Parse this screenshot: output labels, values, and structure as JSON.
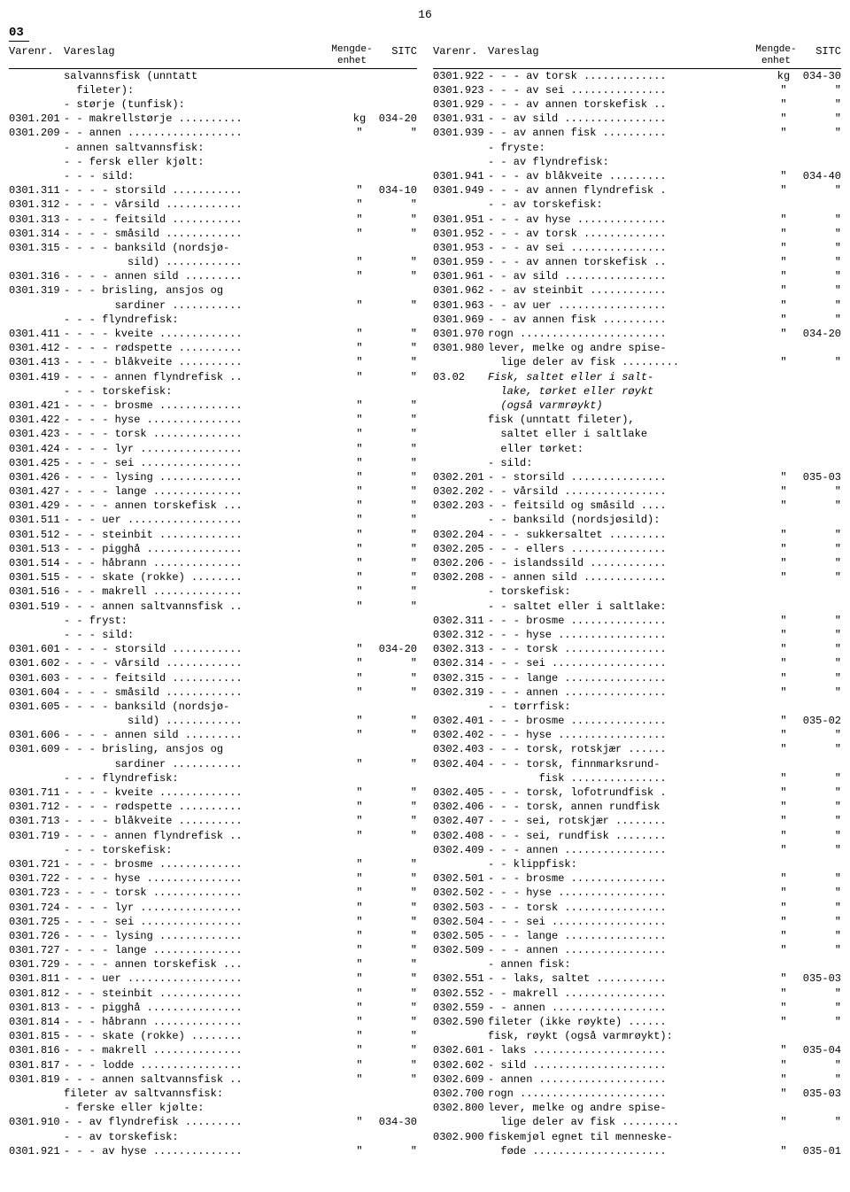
{
  "page_number": "16",
  "chapter": "03",
  "headers": {
    "varenr": "Varenr.",
    "vareslag": "Vareslag",
    "mengde1": "Mengde-",
    "mengde2": "enhet",
    "sitc": "SITC"
  },
  "left": [
    {
      "v": "",
      "d": "salvannsfisk (unntatt",
      "m": "",
      "s": ""
    },
    {
      "v": "",
      "d": "  fileter):",
      "m": "",
      "s": ""
    },
    {
      "v": "",
      "d": "- størje (tunfisk):",
      "m": "",
      "s": ""
    },
    {
      "v": "0301.201",
      "d": "- - makrellstørje ..........",
      "m": "kg",
      "s": "034-20"
    },
    {
      "v": "0301.209",
      "d": "- - annen ..................",
      "m": "\"",
      "s": "\""
    },
    {
      "v": "",
      "d": "- annen saltvannsfisk:",
      "m": "",
      "s": ""
    },
    {
      "v": "",
      "d": "- - fersk eller kjølt:",
      "m": "",
      "s": ""
    },
    {
      "v": "",
      "d": "- - - sild:",
      "m": "",
      "s": ""
    },
    {
      "v": "0301.311",
      "d": "- - - - storsild ...........",
      "m": "\"",
      "s": "034-10"
    },
    {
      "v": "0301.312",
      "d": "- - - - vårsild ............",
      "m": "\"",
      "s": "\""
    },
    {
      "v": "0301.313",
      "d": "- - - - feitsild ...........",
      "m": "\"",
      "s": "\""
    },
    {
      "v": "0301.314",
      "d": "- - - - småsild ............",
      "m": "\"",
      "s": "\""
    },
    {
      "v": "0301.315",
      "d": "- - - - banksild (nordsjø-",
      "m": "",
      "s": ""
    },
    {
      "v": "",
      "d": "          sild) ............",
      "m": "\"",
      "s": "\""
    },
    {
      "v": "0301.316",
      "d": "- - - - annen sild .........",
      "m": "\"",
      "s": "\""
    },
    {
      "v": "0301.319",
      "d": "- - - brisling, ansjos og",
      "m": "",
      "s": ""
    },
    {
      "v": "",
      "d": "        sardiner ...........",
      "m": "\"",
      "s": "\""
    },
    {
      "v": "",
      "d": "- - - flyndrefisk:",
      "m": "",
      "s": ""
    },
    {
      "v": "0301.411",
      "d": "- - - - kveite .............",
      "m": "\"",
      "s": "\""
    },
    {
      "v": "0301.412",
      "d": "- - - - rødspette ..........",
      "m": "\"",
      "s": "\""
    },
    {
      "v": "0301.413",
      "d": "- - - - blåkveite ..........",
      "m": "\"",
      "s": "\""
    },
    {
      "v": "0301.419",
      "d": "- - - - annen flyndrefisk ..",
      "m": "\"",
      "s": "\""
    },
    {
      "v": "",
      "d": "- - - torskefisk:",
      "m": "",
      "s": ""
    },
    {
      "v": "0301.421",
      "d": "- - - - brosme .............",
      "m": "\"",
      "s": "\""
    },
    {
      "v": "0301.422",
      "d": "- - - - hyse ...............",
      "m": "\"",
      "s": "\""
    },
    {
      "v": "0301.423",
      "d": "- - - - torsk ..............",
      "m": "\"",
      "s": "\""
    },
    {
      "v": "0301.424",
      "d": "- - - - lyr ................",
      "m": "\"",
      "s": "\""
    },
    {
      "v": "0301.425",
      "d": "- - - - sei ................",
      "m": "\"",
      "s": "\""
    },
    {
      "v": "0301.426",
      "d": "- - - - lysing .............",
      "m": "\"",
      "s": "\""
    },
    {
      "v": "0301.427",
      "d": "- - - - lange ..............",
      "m": "\"",
      "s": "\""
    },
    {
      "v": "0301.429",
      "d": "- - - - annen torskefisk ...",
      "m": "\"",
      "s": "\""
    },
    {
      "v": "0301.511",
      "d": "- - - uer ..................",
      "m": "\"",
      "s": "\""
    },
    {
      "v": "0301.512",
      "d": "- - - steinbit .............",
      "m": "\"",
      "s": "\""
    },
    {
      "v": "0301.513",
      "d": "- - - pigghå ...............",
      "m": "\"",
      "s": "\""
    },
    {
      "v": "0301.514",
      "d": "- - - håbrann ..............",
      "m": "\"",
      "s": "\""
    },
    {
      "v": "0301.515",
      "d": "- - - skate (rokke) ........",
      "m": "\"",
      "s": "\""
    },
    {
      "v": "0301.516",
      "d": "- - - makrell ..............",
      "m": "\"",
      "s": "\""
    },
    {
      "v": "0301.519",
      "d": "- - - annen saltvannsfisk ..",
      "m": "\"",
      "s": "\""
    },
    {
      "v": "",
      "d": "- - fryst:",
      "m": "",
      "s": ""
    },
    {
      "v": "",
      "d": "- - - sild:",
      "m": "",
      "s": ""
    },
    {
      "v": "0301.601",
      "d": "- - - - storsild ...........",
      "m": "\"",
      "s": "034-20"
    },
    {
      "v": "0301.602",
      "d": "- - - - vårsild ............",
      "m": "\"",
      "s": "\""
    },
    {
      "v": "0301.603",
      "d": "- - - - feitsild ...........",
      "m": "\"",
      "s": "\""
    },
    {
      "v": "0301.604",
      "d": "- - - - småsild ............",
      "m": "\"",
      "s": "\""
    },
    {
      "v": "0301.605",
      "d": "- - - - banksild (nordsjø-",
      "m": "",
      "s": ""
    },
    {
      "v": "",
      "d": "          sild) ............",
      "m": "\"",
      "s": "\""
    },
    {
      "v": "0301.606",
      "d": "- - - - annen sild .........",
      "m": "\"",
      "s": "\""
    },
    {
      "v": "0301.609",
      "d": "- - - brisling, ansjos og",
      "m": "",
      "s": ""
    },
    {
      "v": "",
      "d": "        sardiner ...........",
      "m": "\"",
      "s": "\""
    },
    {
      "v": "",
      "d": "- - - flyndrefisk:",
      "m": "",
      "s": ""
    },
    {
      "v": "0301.711",
      "d": "- - - - kveite .............",
      "m": "\"",
      "s": "\""
    },
    {
      "v": "0301.712",
      "d": "- - - - rødspette ..........",
      "m": "\"",
      "s": "\""
    },
    {
      "v": "0301.713",
      "d": "- - - - blåkveite ..........",
      "m": "\"",
      "s": "\""
    },
    {
      "v": "0301.719",
      "d": "- - - - annen flyndrefisk ..",
      "m": "\"",
      "s": "\""
    },
    {
      "v": "",
      "d": "- - - torskefisk:",
      "m": "",
      "s": ""
    },
    {
      "v": "0301.721",
      "d": "- - - - brosme .............",
      "m": "\"",
      "s": "\""
    },
    {
      "v": "0301.722",
      "d": "- - - - hyse ...............",
      "m": "\"",
      "s": "\""
    },
    {
      "v": "0301.723",
      "d": "- - - - torsk ..............",
      "m": "\"",
      "s": "\""
    },
    {
      "v": "0301.724",
      "d": "- - - - lyr ................",
      "m": "\"",
      "s": "\""
    },
    {
      "v": "0301.725",
      "d": "- - - - sei ................",
      "m": "\"",
      "s": "\""
    },
    {
      "v": "0301.726",
      "d": "- - - - lysing .............",
      "m": "\"",
      "s": "\""
    },
    {
      "v": "0301.727",
      "d": "- - - - lange ..............",
      "m": "\"",
      "s": "\""
    },
    {
      "v": "0301.729",
      "d": "- - - - annen torskefisk ...",
      "m": "\"",
      "s": "\""
    },
    {
      "v": "0301.811",
      "d": "- - - uer ..................",
      "m": "\"",
      "s": "\""
    },
    {
      "v": "0301.812",
      "d": "- - - steinbit .............",
      "m": "\"",
      "s": "\""
    },
    {
      "v": "0301.813",
      "d": "- - - pigghå ...............",
      "m": "\"",
      "s": "\""
    },
    {
      "v": "0301.814",
      "d": "- - - håbrann ..............",
      "m": "\"",
      "s": "\""
    },
    {
      "v": "0301.815",
      "d": "- - - skate (rokke) ........",
      "m": "\"",
      "s": "\""
    },
    {
      "v": "0301.816",
      "d": "- - - makrell ..............",
      "m": "\"",
      "s": "\""
    },
    {
      "v": "0301.817",
      "d": "- - - lodde ................",
      "m": "\"",
      "s": "\""
    },
    {
      "v": "0301.819",
      "d": "- - - annen saltvannsfisk ..",
      "m": "\"",
      "s": "\""
    },
    {
      "v": "",
      "d": "fileter av saltvannsfisk:",
      "m": "",
      "s": ""
    },
    {
      "v": "",
      "d": "- ferske eller kjølte:",
      "m": "",
      "s": ""
    },
    {
      "v": "0301.910",
      "d": "- - av flyndrefisk .........",
      "m": "\"",
      "s": "034-30"
    },
    {
      "v": "",
      "d": "- - av torskefisk:",
      "m": "",
      "s": ""
    },
    {
      "v": "0301.921",
      "d": "- - - av hyse ..............",
      "m": "\"",
      "s": "\""
    }
  ],
  "right": [
    {
      "v": "0301.922",
      "d": "- - - av torsk .............",
      "m": "kg",
      "s": "034-30"
    },
    {
      "v": "0301.923",
      "d": "- - - av sei ...............",
      "m": "\"",
      "s": "\""
    },
    {
      "v": "0301.929",
      "d": "- - - av annen torskefisk ..",
      "m": "\"",
      "s": "\""
    },
    {
      "v": "0301.931",
      "d": "- - av sild ................",
      "m": "\"",
      "s": "\""
    },
    {
      "v": "0301.939",
      "d": "- - av annen fisk ..........",
      "m": "\"",
      "s": "\""
    },
    {
      "v": "",
      "d": "- fryste:",
      "m": "",
      "s": ""
    },
    {
      "v": "",
      "d": "- - av flyndrefisk:",
      "m": "",
      "s": ""
    },
    {
      "v": "0301.941",
      "d": "- - - av blåkveite .........",
      "m": "\"",
      "s": "034-40"
    },
    {
      "v": "0301.949",
      "d": "- - - av annen flyndrefisk .",
      "m": "\"",
      "s": "\""
    },
    {
      "v": "",
      "d": "- - av torskefisk:",
      "m": "",
      "s": ""
    },
    {
      "v": "0301.951",
      "d": "- - - av hyse ..............",
      "m": "\"",
      "s": "\""
    },
    {
      "v": "0301.952",
      "d": "- - - av torsk .............",
      "m": "\"",
      "s": "\""
    },
    {
      "v": "0301.953",
      "d": "- - - av sei ...............",
      "m": "\"",
      "s": "\""
    },
    {
      "v": "0301.959",
      "d": "- - - av annen torskefisk ..",
      "m": "\"",
      "s": "\""
    },
    {
      "v": "0301.961",
      "d": "- - av sild ................",
      "m": "\"",
      "s": "\""
    },
    {
      "v": "0301.962",
      "d": "- - av steinbit ............",
      "m": "\"",
      "s": "\""
    },
    {
      "v": "0301.963",
      "d": "- - av uer .................",
      "m": "\"",
      "s": "\""
    },
    {
      "v": "0301.969",
      "d": "- - av annen fisk ..........",
      "m": "\"",
      "s": "\""
    },
    {
      "v": "0301.970",
      "d": "rogn .......................",
      "m": "\"",
      "s": "034-20"
    },
    {
      "v": "0301.980",
      "d": "lever, melke og andre spise-",
      "m": "",
      "s": ""
    },
    {
      "v": "",
      "d": "  lige deler av fisk .........",
      "m": "\"",
      "s": "\""
    },
    {
      "v": "",
      "d": "",
      "m": "",
      "s": ""
    },
    {
      "v": "03.02",
      "d": "Fisk, saltet eller i salt-",
      "m": "",
      "s": "",
      "italic": true
    },
    {
      "v": "",
      "d": "  lake, tørket eller røykt",
      "m": "",
      "s": "",
      "italic": true
    },
    {
      "v": "",
      "d": "  (også varmrøykt)",
      "m": "",
      "s": "",
      "italic": true
    },
    {
      "v": "",
      "d": "fisk (unntatt fileter),",
      "m": "",
      "s": ""
    },
    {
      "v": "",
      "d": "  saltet eller i saltlake",
      "m": "",
      "s": ""
    },
    {
      "v": "",
      "d": "  eller tørket:",
      "m": "",
      "s": ""
    },
    {
      "v": "",
      "d": "- sild:",
      "m": "",
      "s": ""
    },
    {
      "v": "0302.201",
      "d": "- - storsild ...............",
      "m": "\"",
      "s": "035-03"
    },
    {
      "v": "0302.202",
      "d": "- - vårsild ................",
      "m": "\"",
      "s": "\""
    },
    {
      "v": "0302.203",
      "d": "- - feitsild og småsild ....",
      "m": "\"",
      "s": "\""
    },
    {
      "v": "",
      "d": "- - banksild (nordsjøsild):",
      "m": "",
      "s": ""
    },
    {
      "v": "0302.204",
      "d": "- - - sukkersaltet .........",
      "m": "\"",
      "s": "\""
    },
    {
      "v": "0302.205",
      "d": "- - - ellers ...............",
      "m": "\"",
      "s": "\""
    },
    {
      "v": "0302.206",
      "d": "- - islandssild ............",
      "m": "\"",
      "s": "\""
    },
    {
      "v": "0302.208",
      "d": "- - annen sild .............",
      "m": "\"",
      "s": "\""
    },
    {
      "v": "",
      "d": "- torskefisk:",
      "m": "",
      "s": ""
    },
    {
      "v": "",
      "d": "- - saltet eller i saltlake:",
      "m": "",
      "s": ""
    },
    {
      "v": "0302.311",
      "d": "- - - brosme ...............",
      "m": "\"",
      "s": "\""
    },
    {
      "v": "0302.312",
      "d": "- - - hyse .................",
      "m": "\"",
      "s": "\""
    },
    {
      "v": "0302.313",
      "d": "- - - torsk ................",
      "m": "\"",
      "s": "\""
    },
    {
      "v": "0302.314",
      "d": "- - - sei ..................",
      "m": "\"",
      "s": "\""
    },
    {
      "v": "0302.315",
      "d": "- - - lange ................",
      "m": "\"",
      "s": "\""
    },
    {
      "v": "0302.319",
      "d": "- - - annen ................",
      "m": "\"",
      "s": "\""
    },
    {
      "v": "",
      "d": "- - tørrfisk:",
      "m": "",
      "s": ""
    },
    {
      "v": "0302.401",
      "d": "- - - brosme ...............",
      "m": "\"",
      "s": "035-02"
    },
    {
      "v": "0302.402",
      "d": "- - - hyse .................",
      "m": "\"",
      "s": "\""
    },
    {
      "v": "0302.403",
      "d": "- - - torsk, rotskjær ......",
      "m": "\"",
      "s": "\""
    },
    {
      "v": "0302.404",
      "d": "- - - torsk, finnmarksrund-",
      "m": "",
      "s": ""
    },
    {
      "v": "",
      "d": "        fisk ...............",
      "m": "\"",
      "s": "\""
    },
    {
      "v": "0302.405",
      "d": "- - - torsk, lofotrundfisk .",
      "m": "\"",
      "s": "\""
    },
    {
      "v": "0302.406",
      "d": "- - - torsk, annen rundfisk ",
      "m": "\"",
      "s": "\""
    },
    {
      "v": "0302.407",
      "d": "- - - sei, rotskjær ........",
      "m": "\"",
      "s": "\""
    },
    {
      "v": "0302.408",
      "d": "- - - sei, rundfisk ........",
      "m": "\"",
      "s": "\""
    },
    {
      "v": "0302.409",
      "d": "- - - annen ................",
      "m": "\"",
      "s": "\""
    },
    {
      "v": "",
      "d": "- - klippfisk:",
      "m": "",
      "s": ""
    },
    {
      "v": "0302.501",
      "d": "- - - brosme ...............",
      "m": "\"",
      "s": "\""
    },
    {
      "v": "0302.502",
      "d": "- - - hyse .................",
      "m": "\"",
      "s": "\""
    },
    {
      "v": "0302.503",
      "d": "- - - torsk ................",
      "m": "\"",
      "s": "\""
    },
    {
      "v": "0302.504",
      "d": "- - - sei ..................",
      "m": "\"",
      "s": "\""
    },
    {
      "v": "0302.505",
      "d": "- - - lange ................",
      "m": "\"",
      "s": "\""
    },
    {
      "v": "0302.509",
      "d": "- - - annen ................",
      "m": "\"",
      "s": "\""
    },
    {
      "v": "",
      "d": "- annen fisk:",
      "m": "",
      "s": ""
    },
    {
      "v": "0302.551",
      "d": "- - laks, saltet ...........",
      "m": "\"",
      "s": "035-03"
    },
    {
      "v": "0302.552",
      "d": "- - makrell ................",
      "m": "\"",
      "s": "\""
    },
    {
      "v": "0302.559",
      "d": "- - annen ..................",
      "m": "\"",
      "s": "\""
    },
    {
      "v": "0302.590",
      "d": "fileter (ikke røykte) ......",
      "m": "\"",
      "s": "\""
    },
    {
      "v": "",
      "d": "fisk, røykt (også varmrøykt):",
      "m": "",
      "s": ""
    },
    {
      "v": "0302.601",
      "d": "- laks .....................",
      "m": "\"",
      "s": "035-04"
    },
    {
      "v": "0302.602",
      "d": "- sild .....................",
      "m": "\"",
      "s": "\""
    },
    {
      "v": "0302.609",
      "d": "- annen ....................",
      "m": "\"",
      "s": "\""
    },
    {
      "v": "0302.700",
      "d": "rogn .......................",
      "m": "\"",
      "s": "035-03"
    },
    {
      "v": "0302.800",
      "d": "lever, melke og andre spise-",
      "m": "",
      "s": ""
    },
    {
      "v": "",
      "d": "  lige deler av fisk .........",
      "m": "\"",
      "s": "\""
    },
    {
      "v": "0302.900",
      "d": "fiskemjøl egnet til menneske-",
      "m": "",
      "s": ""
    },
    {
      "v": "",
      "d": "  føde .....................",
      "m": "\"",
      "s": "035-01"
    }
  ]
}
